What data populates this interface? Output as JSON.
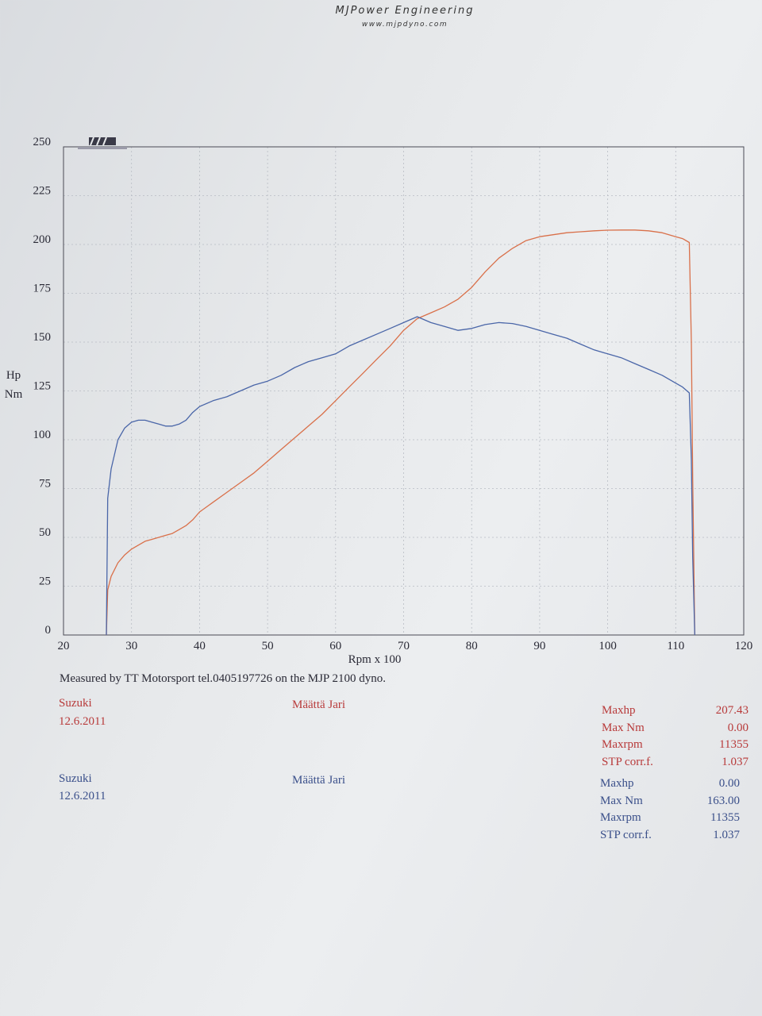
{
  "header": {
    "brand": "MJPower Engineering",
    "website": "www.mjpdyno.com"
  },
  "chart_data": {
    "type": "line",
    "xlabel": "Rpm x 100",
    "ylabel": [
      "Hp",
      "Nm"
    ],
    "xlim": [
      20,
      120
    ],
    "ylim": [
      0,
      250
    ],
    "xticks": [
      "20",
      "30",
      "40",
      "50",
      "60",
      "70",
      "80",
      "90",
      "100",
      "110",
      "120"
    ],
    "yticks": [
      "0",
      "25",
      "50",
      "75",
      "100",
      "125",
      "150",
      "175",
      "200",
      "225",
      "250"
    ],
    "grid": true,
    "legend": "none",
    "series": [
      {
        "color": "#d9704a",
        "x": [
          26.3,
          26.5,
          27,
          28,
          29,
          30,
          31,
          32,
          33,
          34,
          35,
          36,
          37,
          38,
          39,
          40,
          42,
          44,
          46,
          48,
          50,
          52,
          54,
          56,
          58,
          60,
          62,
          64,
          66,
          68,
          70,
          72,
          74,
          76,
          78,
          80,
          82,
          84,
          86,
          88,
          90,
          92,
          94,
          96,
          98,
          100,
          102,
          104,
          106,
          108,
          110,
          111,
          112,
          112.3,
          112.5,
          112.8
        ],
        "y": [
          0,
          23,
          30,
          37,
          41,
          44,
          46,
          48,
          49,
          50,
          51,
          52,
          54,
          56,
          59,
          63,
          68,
          73,
          78,
          83,
          89,
          95,
          101,
          107,
          113,
          120,
          127,
          134,
          141,
          148,
          156,
          162,
          165,
          168,
          172,
          178,
          186,
          193,
          198,
          202,
          204,
          205,
          206,
          206.5,
          207,
          207.3,
          207.4,
          207.4,
          207,
          206,
          204,
          203,
          201,
          150,
          80,
          0
        ]
      },
      {
        "color": "#4a66a8",
        "x": [
          26.3,
          26.5,
          27,
          28,
          29,
          30,
          31,
          32,
          33,
          34,
          35,
          36,
          37,
          38,
          39,
          40,
          42,
          44,
          46,
          48,
          50,
          52,
          54,
          56,
          58,
          60,
          62,
          64,
          66,
          68,
          70,
          72,
          74,
          76,
          78,
          80,
          82,
          84,
          86,
          88,
          90,
          92,
          94,
          96,
          98,
          100,
          102,
          104,
          106,
          108,
          110,
          111,
          112,
          112.3,
          112.5,
          112.8
        ],
        "y": [
          0,
          70,
          85,
          100,
          106,
          109,
          110,
          110,
          109,
          108,
          107,
          107,
          108,
          110,
          114,
          117,
          120,
          122,
          125,
          128,
          130,
          133,
          137,
          140,
          142,
          144,
          148,
          151,
          154,
          157,
          160,
          163,
          160,
          158,
          156,
          157,
          159,
          160,
          159.5,
          158,
          156,
          154,
          152,
          149,
          146,
          144,
          142,
          139,
          136,
          133,
          129,
          127,
          124,
          90,
          40,
          0
        ]
      }
    ]
  },
  "note": "Measured by TT Motorsport tel.0405197726 on the MJP 2100 dyno.",
  "runs": [
    {
      "vehicle": "Suzuki",
      "date": "12.6.2011",
      "operator": "Määttä Jari",
      "color": "#b83a3a",
      "stats": [
        {
          "label": "Maxhp",
          "value": "207.43"
        },
        {
          "label": "Max Nm",
          "value": "0.00"
        },
        {
          "label": "Maxrpm",
          "value": "11355"
        },
        {
          "label": "STP corr.f.",
          "value": "1.037"
        }
      ]
    },
    {
      "vehicle": "Suzuki",
      "date": "12.6.2011",
      "operator": "Määttä Jari",
      "color": "#3a4f8a",
      "stats": [
        {
          "label": "Maxhp",
          "value": "0.00"
        },
        {
          "label": "Max Nm",
          "value": "163.00"
        },
        {
          "label": "Maxrpm",
          "value": "11355"
        },
        {
          "label": "STP corr.f.",
          "value": "1.037"
        }
      ]
    }
  ]
}
